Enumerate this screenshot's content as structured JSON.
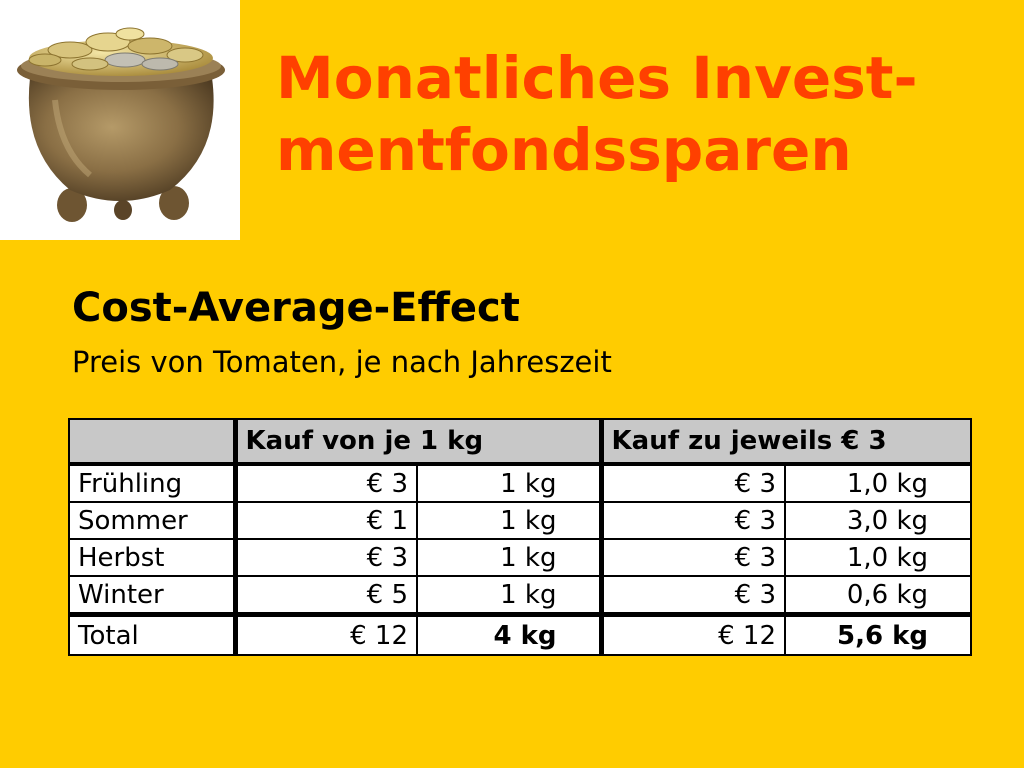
{
  "title": "Monatliches Invest-mentfondssparen",
  "title_line1": "Monatliches Invest-",
  "title_line2": "mentfondssparen",
  "subtitle": "Cost-Average-Effect",
  "subline": "Preis von Tomaten, je nach Jahreszeit",
  "image": {
    "description_icon": "pot-of-coins-icon"
  },
  "table": {
    "header": {
      "blank": "",
      "group1": "Kauf von je 1 kg",
      "group2": "Kauf zu jeweils € 3"
    },
    "rows": [
      {
        "season": "Frühling",
        "price1": "€ 3",
        "qty1": "1 kg",
        "price2": "€ 3",
        "qty2": "1,0 kg"
      },
      {
        "season": "Sommer",
        "price1": "€ 1",
        "qty1": "1 kg",
        "price2": "€ 3",
        "qty2": "3,0 kg"
      },
      {
        "season": "Herbst",
        "price1": "€ 3",
        "qty1": "1 kg",
        "price2": "€ 3",
        "qty2": "1,0 kg"
      },
      {
        "season": "Winter",
        "price1": "€ 5",
        "qty1": "1 kg",
        "price2": "€ 3",
        "qty2": "0,6 kg"
      }
    ],
    "total": {
      "label": "Total",
      "price1": "€ 12",
      "qty1": "4 kg",
      "price2": "€ 12",
      "qty2": "5,6 kg"
    }
  },
  "colors": {
    "background": "#FFCC00",
    "title": "#FF4000",
    "header_bg": "#C8C8C8"
  }
}
